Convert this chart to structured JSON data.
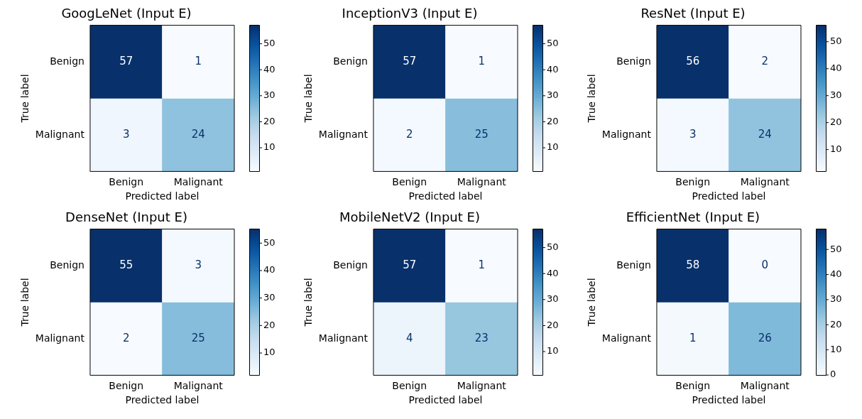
{
  "chart_data": [
    {
      "type": "heatmap",
      "title": "GoogLeNet (Input E)",
      "xlabel": "Predicted label",
      "ylabel": "True label",
      "categories": [
        "Benign",
        "Malignant"
      ],
      "y_categories": [
        "Benign",
        "Malignant"
      ],
      "cells": [
        [
          57,
          1
        ],
        [
          3,
          24
        ]
      ],
      "clim": [
        1,
        57
      ],
      "cticks": [
        10,
        20,
        30,
        40,
        50
      ],
      "data_labels": true
    },
    {
      "type": "heatmap",
      "title": "InceptionV3 (Input E)",
      "xlabel": "Predicted label",
      "ylabel": "True label",
      "categories": [
        "Benign",
        "Malignant"
      ],
      "y_categories": [
        "Benign",
        "Malignant"
      ],
      "cells": [
        [
          57,
          1
        ],
        [
          2,
          25
        ]
      ],
      "clim": [
        1,
        57
      ],
      "cticks": [
        10,
        20,
        30,
        40,
        50
      ],
      "data_labels": true
    },
    {
      "type": "heatmap",
      "title": "ResNet (Input E)",
      "xlabel": "Predicted label",
      "ylabel": "True label",
      "categories": [
        "Benign",
        "Malignant"
      ],
      "y_categories": [
        "Benign",
        "Malignant"
      ],
      "cells": [
        [
          56,
          2
        ],
        [
          3,
          24
        ]
      ],
      "clim": [
        2,
        56
      ],
      "cticks": [
        10,
        20,
        30,
        40,
        50
      ],
      "data_labels": true
    },
    {
      "type": "heatmap",
      "title": "DenseNet (Input E)",
      "xlabel": "Predicted label",
      "ylabel": "True label",
      "categories": [
        "Benign",
        "Malignant"
      ],
      "y_categories": [
        "Benign",
        "Malignant"
      ],
      "cells": [
        [
          55,
          3
        ],
        [
          2,
          25
        ]
      ],
      "clim": [
        2,
        55
      ],
      "cticks": [
        10,
        20,
        30,
        40,
        50
      ],
      "data_labels": true
    },
    {
      "type": "heatmap",
      "title": "MobileNetV2 (Input E)",
      "xlabel": "Predicted label",
      "ylabel": "True label",
      "categories": [
        "Benign",
        "Malignant"
      ],
      "y_categories": [
        "Benign",
        "Malignant"
      ],
      "cells": [
        [
          57,
          1
        ],
        [
          4,
          23
        ]
      ],
      "clim": [
        1,
        57
      ],
      "cticks": [
        10,
        20,
        30,
        40,
        50
      ],
      "data_labels": true
    },
    {
      "type": "heatmap",
      "title": "EfficientNet (Input E)",
      "xlabel": "Predicted label",
      "ylabel": "True label",
      "categories": [
        "Benign",
        "Malignant"
      ],
      "y_categories": [
        "Benign",
        "Malignant"
      ],
      "cells": [
        [
          58,
          0
        ],
        [
          1,
          26
        ]
      ],
      "clim": [
        0,
        58
      ],
      "cticks": [
        0,
        10,
        20,
        30,
        40,
        50
      ],
      "data_labels": true
    }
  ]
}
